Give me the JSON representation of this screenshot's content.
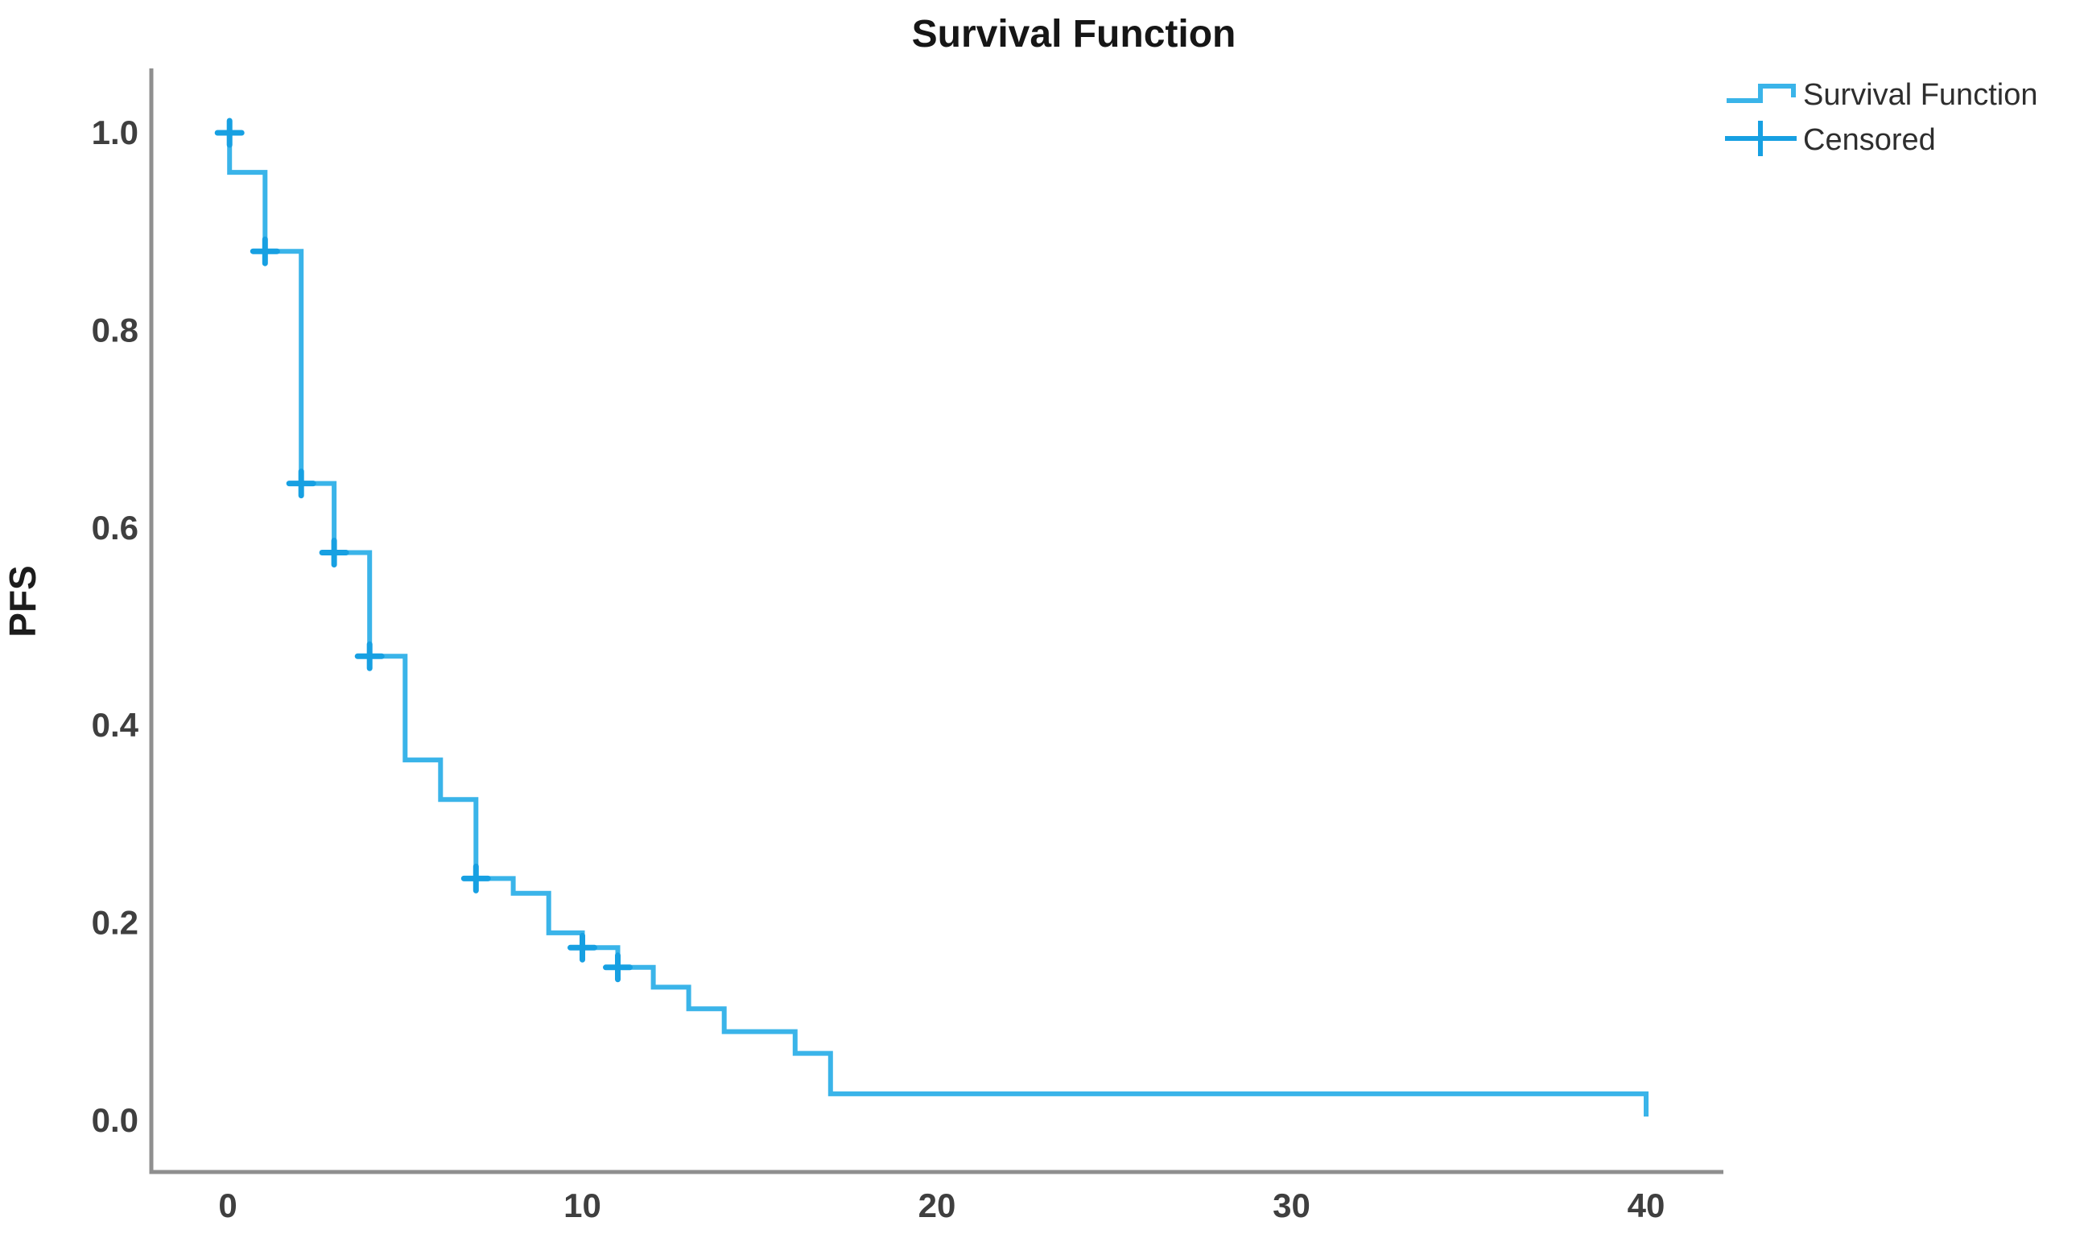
{
  "chart_data": {
    "type": "line",
    "subtype": "kaplan-meier-step",
    "title": "Survival Function",
    "xlabel": "",
    "ylabel": "PFS",
    "xlim": [
      -2.2,
      42.2
    ],
    "ylim": [
      -0.05,
      1.07
    ],
    "grid": "off",
    "x_ticks": [
      {
        "label": "0",
        "value": 0
      },
      {
        "label": "10",
        "value": 10
      },
      {
        "label": "20",
        "value": 20
      },
      {
        "label": "30",
        "value": 30
      },
      {
        "label": "40",
        "value": 40
      }
    ],
    "y_ticks": [
      {
        "label": "1.0",
        "value": 1.0
      },
      {
        "label": "0.8",
        "value": 0.8
      },
      {
        "label": "0.6",
        "value": 0.6
      },
      {
        "label": "0.4",
        "value": 0.4
      },
      {
        "label": "0.2",
        "value": 0.2
      },
      {
        "label": "0.0",
        "value": 0.0
      }
    ],
    "legend": {
      "position": "top-right",
      "entries": [
        {
          "label": "Survival Function",
          "marker": "step-line"
        },
        {
          "label": "Censored",
          "marker": "plus"
        }
      ]
    },
    "colors": {
      "line": "#3ab4e9",
      "censor": "#17a0e2",
      "axis": "#8f8f8f",
      "tick_text": "#3f3f3f",
      "title_text": "#161616"
    },
    "series": [
      {
        "name": "Survival Function",
        "points": [
          {
            "x": 0.05,
            "y": 1.0
          },
          {
            "x": 0.05,
            "y": 0.96
          },
          {
            "x": 1.05,
            "y": 0.88
          },
          {
            "x": 2.07,
            "y": 0.645
          },
          {
            "x": 3.0,
            "y": 0.575
          },
          {
            "x": 4.0,
            "y": 0.47
          },
          {
            "x": 5.0,
            "y": 0.365
          },
          {
            "x": 6.0,
            "y": 0.325
          },
          {
            "x": 7.0,
            "y": 0.245
          },
          {
            "x": 8.05,
            "y": 0.23
          },
          {
            "x": 9.05,
            "y": 0.19
          },
          {
            "x": 10.0,
            "y": 0.175
          },
          {
            "x": 11.0,
            "y": 0.155
          },
          {
            "x": 12.0,
            "y": 0.135
          },
          {
            "x": 13.0,
            "y": 0.113
          },
          {
            "x": 14.0,
            "y": 0.09
          },
          {
            "x": 16.0,
            "y": 0.068
          },
          {
            "x": 17.0,
            "y": 0.027
          },
          {
            "x": 40.0,
            "y": 0.004
          }
        ],
        "censored": [
          {
            "x": 0.05,
            "y": 1.0
          },
          {
            "x": 1.05,
            "y": 0.88
          },
          {
            "x": 2.07,
            "y": 0.645
          },
          {
            "x": 3.0,
            "y": 0.575
          },
          {
            "x": 4.0,
            "y": 0.47
          },
          {
            "x": 7.0,
            "y": 0.245
          },
          {
            "x": 10.0,
            "y": 0.175
          },
          {
            "x": 11.0,
            "y": 0.155
          }
        ]
      }
    ]
  }
}
